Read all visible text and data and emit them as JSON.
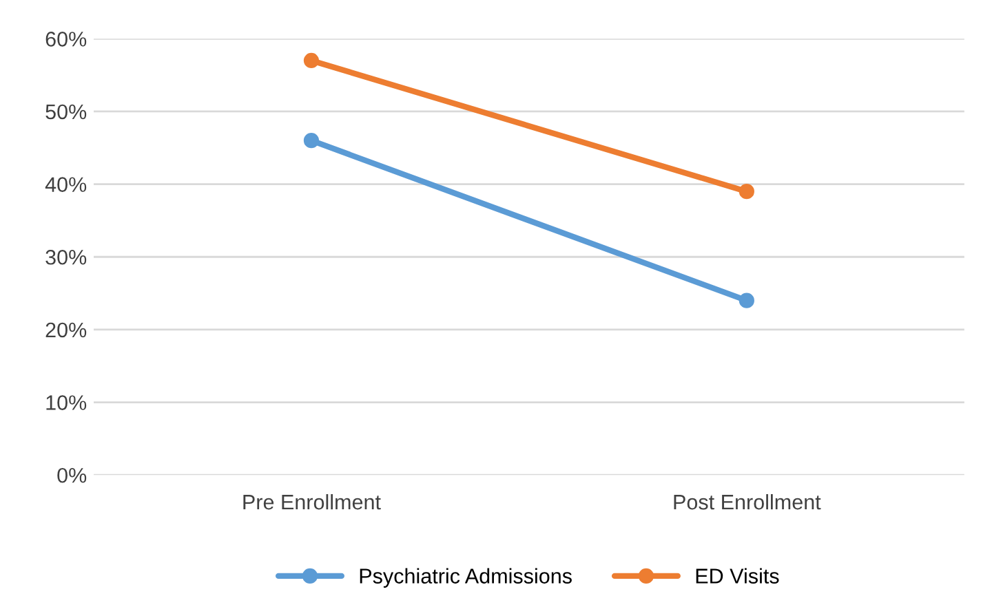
{
  "chart_data": {
    "type": "line",
    "categories": [
      "Pre Enrollment",
      "Post Enrollment"
    ],
    "series": [
      {
        "name": "Psychiatric Admissions",
        "color": "#5b9bd5",
        "values": [
          46,
          24
        ]
      },
      {
        "name": "ED Visits",
        "color": "#ed7d31",
        "values": [
          57,
          39
        ]
      }
    ],
    "ylim": [
      0,
      60
    ],
    "yticks": [
      {
        "value": 0,
        "label": "0%"
      },
      {
        "value": 10,
        "label": "10%"
      },
      {
        "value": 20,
        "label": "20%"
      },
      {
        "value": 30,
        "label": "30%"
      },
      {
        "value": 40,
        "label": "40%"
      },
      {
        "value": 50,
        "label": "50%"
      },
      {
        "value": 60,
        "label": "60%"
      }
    ],
    "grid": "y",
    "legend": "bottom",
    "marker": "circle",
    "line_style": "solid"
  }
}
